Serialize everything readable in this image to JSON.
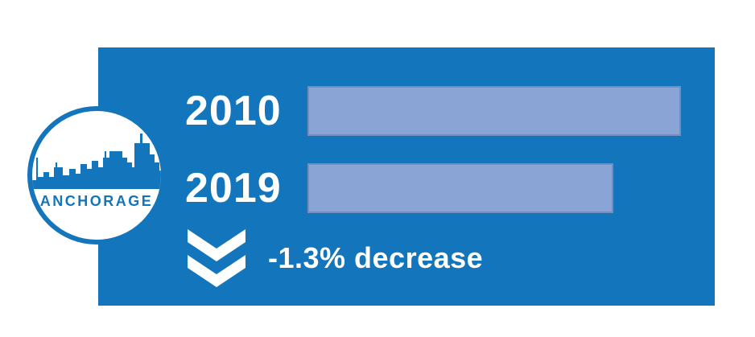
{
  "page": {
    "background": "#FFFFFF"
  },
  "panel": {
    "color": "#1375BB"
  },
  "badge": {
    "label": "ANCHORAGE",
    "icon": "city-skyline-icon",
    "text_color": "#1375BB",
    "ring_color": "#1375BB"
  },
  "chart_data": {
    "type": "bar",
    "orientation": "horizontal",
    "title": "",
    "categories": [
      "2010",
      "2019"
    ],
    "values": [
      100,
      81.8
    ],
    "values_unit": "percent of longest bar (absolute values not shown)",
    "bar_color": "#8AA4D5",
    "panel_color": "#1375BB",
    "label_color": "#FFFFFF",
    "legend": "none",
    "axes": "none",
    "annotation": {
      "icon": "double-chevron-down-icon",
      "text": "-1.3% decrease",
      "color": "#FFFFFF"
    }
  }
}
